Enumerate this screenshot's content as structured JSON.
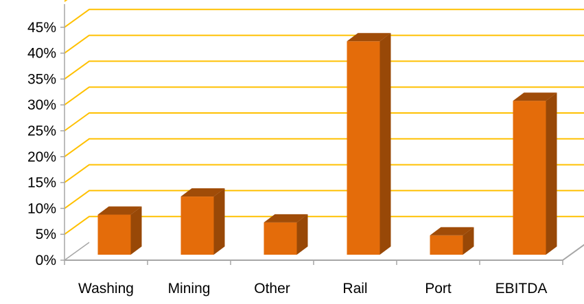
{
  "chart_data": {
    "type": "bar",
    "categories": [
      "Washing",
      "Mining",
      "Other",
      "Rail",
      "Port",
      "EBITDA"
    ],
    "values": [
      8,
      11.5,
      6.5,
      41.5,
      4,
      30
    ],
    "y_ticks": [
      "0%",
      "5%",
      "10%",
      "15%",
      "20%",
      "25%",
      "30%",
      "35%",
      "40%",
      "45%"
    ],
    "ylim": [
      0,
      50
    ],
    "grid": true,
    "style": "3d",
    "colors": {
      "bar_front": "#E46C0A",
      "bar_side": "#984807",
      "bar_top": "#A04C08",
      "gridline": "#FFC000",
      "axis": "#A6A6A6"
    }
  }
}
